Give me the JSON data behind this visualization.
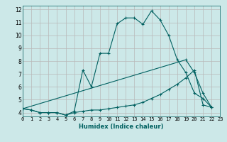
{
  "xlabel": "Humidex (Indice chaleur)",
  "bg_color": "#cce8e8",
  "grid_color": "#b8b8b8",
  "line_color": "#006060",
  "xlim": [
    0,
    23
  ],
  "ylim": [
    3.7,
    12.3
  ],
  "xticks": [
    0,
    1,
    2,
    3,
    4,
    5,
    6,
    7,
    8,
    9,
    10,
    11,
    12,
    13,
    14,
    15,
    16,
    17,
    18,
    19,
    20,
    21,
    22,
    23
  ],
  "yticks": [
    4,
    5,
    6,
    7,
    8,
    9,
    10,
    11,
    12
  ],
  "series1_x": [
    0,
    1,
    2,
    3,
    4,
    5,
    6,
    7,
    8,
    9,
    10,
    11,
    12,
    13,
    14,
    15,
    16,
    17,
    18,
    19,
    20,
    21,
    22
  ],
  "series1_y": [
    4.3,
    4.2,
    4.0,
    4.0,
    4.0,
    3.8,
    4.1,
    7.3,
    6.0,
    8.6,
    8.6,
    10.9,
    11.35,
    11.35,
    10.85,
    11.9,
    11.2,
    10.0,
    8.1,
    7.1,
    5.5,
    5.1,
    4.4
  ],
  "series2_x": [
    0,
    1,
    2,
    3,
    4,
    5,
    6,
    7,
    8,
    9,
    10,
    11,
    12,
    13,
    14,
    15,
    16,
    17,
    18,
    19,
    20,
    21,
    22
  ],
  "series2_y": [
    4.3,
    4.2,
    4.0,
    4.0,
    4.0,
    3.8,
    4.0,
    4.1,
    4.2,
    4.2,
    4.3,
    4.4,
    4.5,
    4.6,
    4.8,
    5.1,
    5.4,
    5.8,
    6.2,
    6.7,
    7.3,
    4.6,
    4.4
  ],
  "series3_x": [
    0,
    19,
    20,
    21,
    22
  ],
  "series3_y": [
    4.3,
    8.1,
    7.1,
    5.5,
    4.4
  ]
}
